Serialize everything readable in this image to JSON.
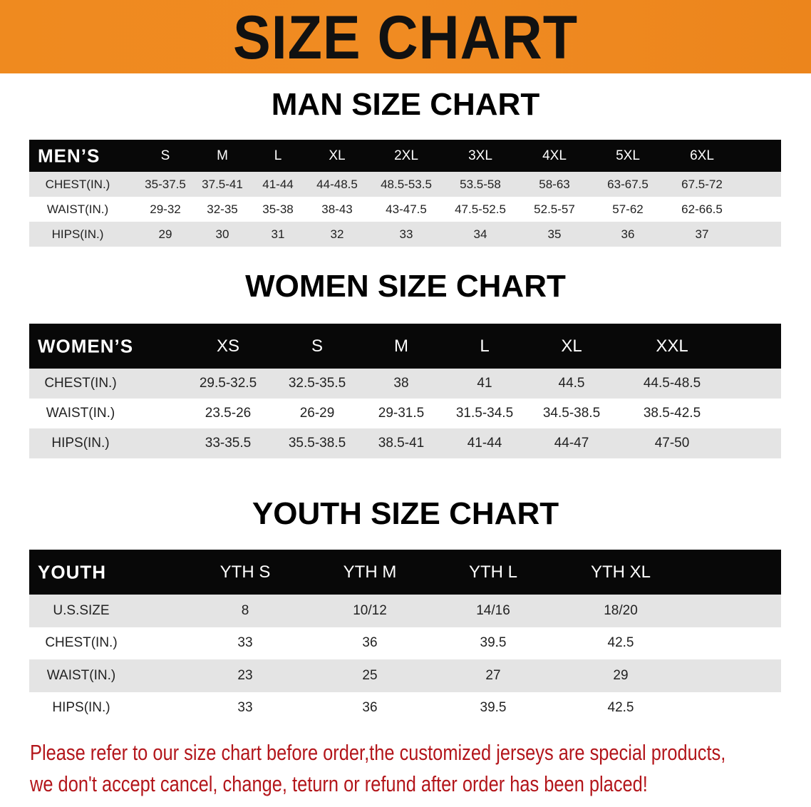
{
  "banner": {
    "title": "SIZE CHART",
    "color": "#ef8a1f"
  },
  "men": {
    "heading": "MAN SIZE CHART",
    "header_label": "MEN’S",
    "sizes": [
      "S",
      "M",
      "L",
      "XL",
      "2XL",
      "3XL",
      "4XL",
      "5XL",
      "6XL"
    ],
    "rows": [
      {
        "label": "CHEST(IN.)",
        "values": [
          "35-37.5",
          "37.5-41",
          "41-44",
          "44-48.5",
          "48.5-53.5",
          "53.5-58",
          "58-63",
          "63-67.5",
          "67.5-72"
        ]
      },
      {
        "label": "WAIST(IN.)",
        "values": [
          "29-32",
          "32-35",
          "35-38",
          "38-43",
          "43-47.5",
          "47.5-52.5",
          "52.5-57",
          "57-62",
          "62-66.5"
        ]
      },
      {
        "label": "HIPS(IN.)",
        "values": [
          "29",
          "30",
          "31",
          "32",
          "33",
          "34",
          "35",
          "36",
          "37"
        ]
      }
    ]
  },
  "women": {
    "heading": "WOMEN SIZE CHART",
    "header_label": "WOMEN’S",
    "sizes": [
      "XS",
      "S",
      "M",
      "L",
      "XL",
      "XXL"
    ],
    "rows": [
      {
        "label": "CHEST(IN.)",
        "values": [
          "29.5-32.5",
          "32.5-35.5",
          "38",
          "41",
          "44.5",
          "44.5-48.5"
        ]
      },
      {
        "label": "WAIST(IN.)",
        "values": [
          "23.5-26",
          "26-29",
          "29-31.5",
          "31.5-34.5",
          "34.5-38.5",
          "38.5-42.5"
        ]
      },
      {
        "label": "HIPS(IN.)",
        "values": [
          "33-35.5",
          "35.5-38.5",
          "38.5-41",
          "41-44",
          "44-47",
          "47-50"
        ]
      }
    ]
  },
  "youth": {
    "heading": "YOUTH SIZE CHART",
    "header_label": "YOUTH",
    "sizes": [
      "YTH S",
      "YTH M",
      "YTH L",
      "YTH XL"
    ],
    "rows": [
      {
        "label": "U.S.SIZE",
        "values": [
          "8",
          "10/12",
          "14/16",
          "18/20"
        ]
      },
      {
        "label": "CHEST(IN.)",
        "values": [
          "33",
          "36",
          "39.5",
          "42.5"
        ]
      },
      {
        "label": "WAIST(IN.)",
        "values": [
          "23",
          "25",
          "27",
          "29"
        ]
      },
      {
        "label": "HIPS(IN.)",
        "values": [
          "33",
          "36",
          "39.5",
          "42.5"
        ]
      }
    ]
  },
  "notice": {
    "line1": "Please refer to our size chart before order,the customized jerseys are special products,",
    "line2": "we don't accept cancel, change, teturn or refund after order has been placed!",
    "color": "#b3161b"
  }
}
